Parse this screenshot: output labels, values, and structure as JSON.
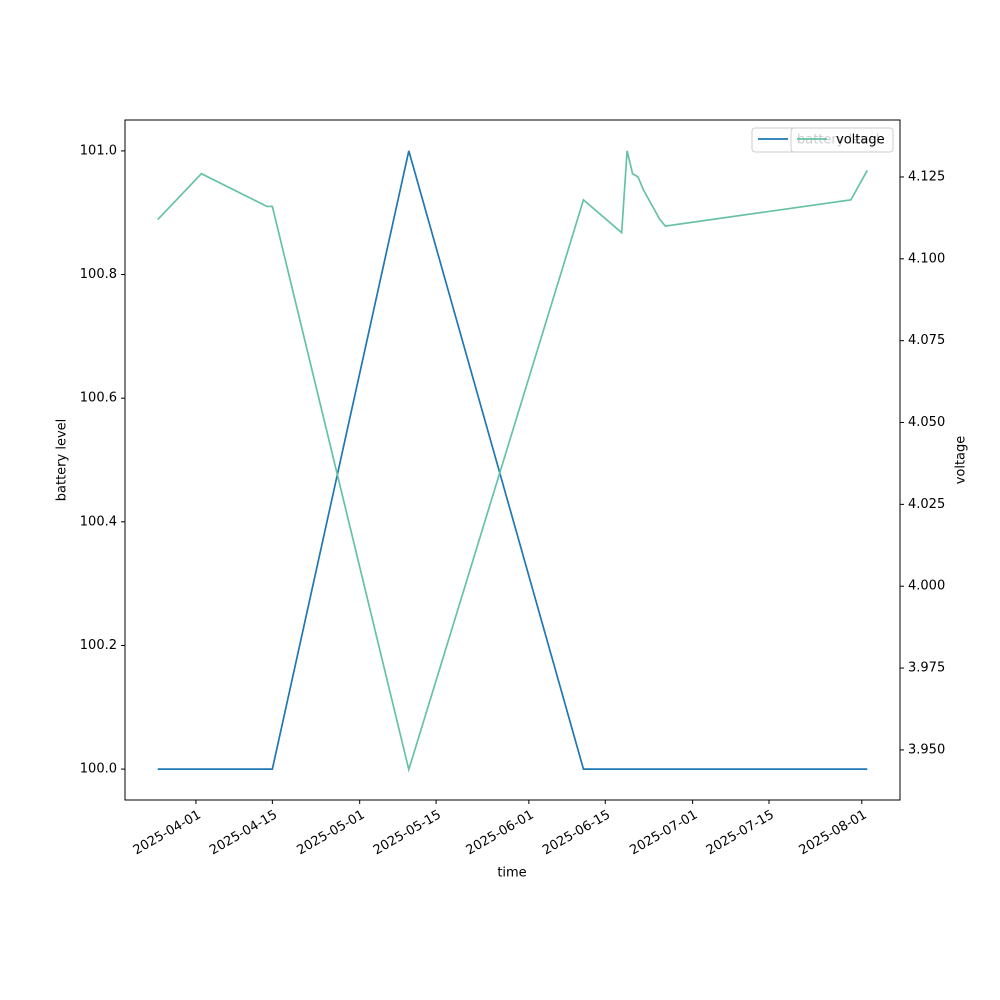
{
  "chart_data": {
    "type": "line",
    "xlabel": "time",
    "ylabel": "battery level",
    "y2label": "voltage",
    "x": [
      "2025-03-25",
      "2025-04-15",
      "2025-05-10",
      "2025-06-11",
      "2025-08-02"
    ],
    "series": [
      {
        "name": "battery level",
        "color": "#1f77b4",
        "values": [
          100.0,
          100.0,
          101.0,
          100.0,
          100.0
        ]
      },
      {
        "name": "voltage",
        "color": "#66c2a5",
        "axis": "y2",
        "x": [
          "2025-03-25",
          "2025-04-02",
          "2025-04-14",
          "2025-04-15",
          "2025-05-10",
          "2025-06-11",
          "2025-06-18",
          "2025-06-19",
          "2025-06-20",
          "2025-06-21",
          "2025-06-22",
          "2025-06-25",
          "2025-06-26",
          "2025-07-30",
          "2025-08-02"
        ],
        "values": [
          4.112,
          4.126,
          4.116,
          4.116,
          3.944,
          4.118,
          4.108,
          4.133,
          4.126,
          4.125,
          4.121,
          4.112,
          4.11,
          4.118,
          4.127
        ]
      }
    ],
    "xlim": [
      "2025-03-19",
      "2025-08-08"
    ],
    "xticks": [
      "2025-04-01",
      "2025-04-15",
      "2025-05-01",
      "2025-05-15",
      "2025-06-01",
      "2025-06-15",
      "2025-07-01",
      "2025-07-15",
      "2025-08-01"
    ],
    "ylim": [
      99.95,
      101.05
    ],
    "yticks": [
      {
        "value": 100,
        "label": "100.0"
      },
      {
        "value": 100.2,
        "label": "100.2"
      },
      {
        "value": 100.4,
        "label": "100.4"
      },
      {
        "value": 100.6,
        "label": "100.6"
      },
      {
        "value": 100.8,
        "label": "100.8"
      },
      {
        "value": 101,
        "label": "101.0"
      }
    ],
    "y2lim": [
      3.9347,
      4.1424
    ],
    "y2ticks": [
      {
        "value": 3.95,
        "label": "3.950"
      },
      {
        "value": 3.975,
        "label": "3.975"
      },
      {
        "value": 4,
        "label": "4.000"
      },
      {
        "value": 4.025,
        "label": "4.025"
      },
      {
        "value": 4.05,
        "label": "4.050"
      },
      {
        "value": 4.075,
        "label": "4.075"
      },
      {
        "value": 4.1,
        "label": "4.100"
      },
      {
        "value": 4.125,
        "label": "4.125"
      }
    ],
    "legend": "upper right",
    "grid": false
  }
}
